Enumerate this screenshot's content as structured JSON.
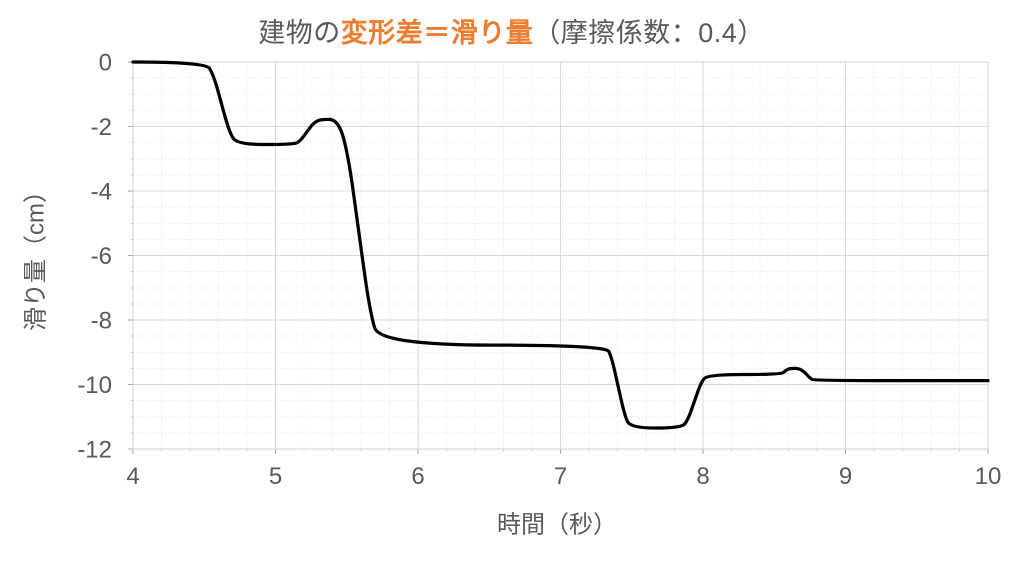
{
  "title": {
    "prefix": "建物の",
    "highlight": "変形差＝滑り量",
    "suffix": "（摩擦係数：0.4）"
  },
  "colors": {
    "title_text": "#595959",
    "title_highlight": "#ED7D31",
    "axis_text": "#595959",
    "grid_major": "#D9D9D9",
    "grid_minor": "#E4E4E4",
    "plot_border": "#D0D0D0",
    "tick_major": "#A6A6A6",
    "tick_minor": "#CFCFCF",
    "series_line": "#000000",
    "background": "#FFFFFF"
  },
  "chart_data": {
    "type": "line",
    "title": "建物の変形差＝滑り量（摩擦係数：0.4）",
    "xlabel": "時間（秒）",
    "ylabel": "滑り量（cm）",
    "xlim": [
      4,
      10
    ],
    "ylim": [
      -12,
      0
    ],
    "x_major_ticks": [
      4,
      5,
      6,
      7,
      8,
      9,
      10
    ],
    "y_major_ticks": [
      0,
      -2,
      -4,
      -6,
      -8,
      -10,
      -12
    ],
    "x_minor_step": 0.2,
    "y_minor_step": 0.5,
    "grid": "major-solid + minor-dotted",
    "legend": "none",
    "series": [
      {
        "color": "#000000",
        "stroke_width": 3.25,
        "points": [
          [
            4.0,
            0
          ],
          [
            4.51,
            0
          ],
          [
            4.565,
            -0.4
          ],
          [
            4.62,
            -1.28
          ],
          [
            4.675,
            -2.16
          ],
          [
            4.73,
            -2.56
          ],
          [
            5.13,
            -2.56
          ],
          [
            5.175,
            -2.44
          ],
          [
            5.22,
            -2.17
          ],
          [
            5.265,
            -1.9
          ],
          [
            5.31,
            -1.78
          ],
          [
            5.44,
            -1.78
          ],
          [
            5.51,
            -2.87
          ],
          [
            5.585,
            -5.28
          ],
          [
            5.66,
            -7.69
          ],
          [
            5.73,
            -8.78
          ],
          [
            7.32,
            -8.78
          ],
          [
            7.36,
            -9.18
          ],
          [
            7.405,
            -10.07
          ],
          [
            7.45,
            -10.95
          ],
          [
            7.49,
            -11.35
          ],
          [
            7.85,
            -11.35
          ],
          [
            7.895,
            -11.09
          ],
          [
            7.94,
            -10.52
          ],
          [
            7.985,
            -9.95
          ],
          [
            8.03,
            -9.69
          ],
          [
            8.55,
            -9.69
          ],
          [
            8.58,
            -9.56
          ],
          [
            8.61,
            -9.5
          ],
          [
            8.67,
            -9.5
          ],
          [
            8.71,
            -9.6
          ],
          [
            8.75,
            -9.8
          ],
          [
            8.78,
            -9.88
          ],
          [
            10.0,
            -9.88
          ]
        ]
      }
    ]
  }
}
